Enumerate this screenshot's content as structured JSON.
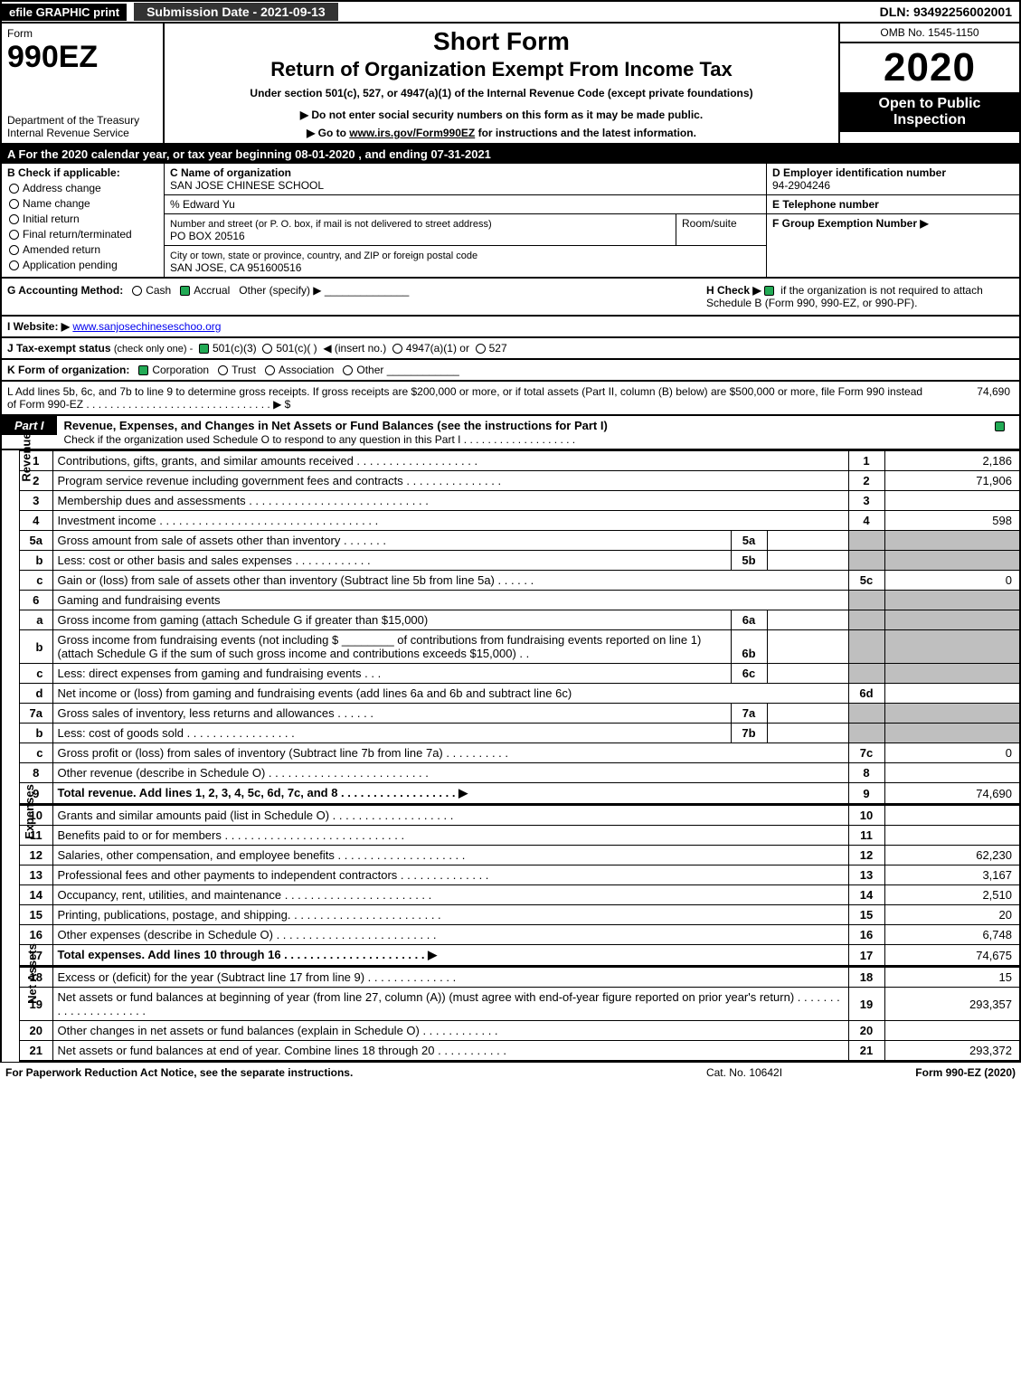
{
  "topbar": {
    "efile": "efile GRAPHIC print",
    "submission": "Submission Date - 2021-09-13",
    "dln": "DLN: 93492256002001"
  },
  "header": {
    "form_label": "Form",
    "form_number": "990EZ",
    "dept": "Department of the Treasury\nInternal Revenue Service",
    "title1": "Short Form",
    "title2": "Return of Organization Exempt From Income Tax",
    "subtitle": "Under section 501(c), 527, or 4947(a)(1) of the Internal Revenue Code (except private foundations)",
    "note1": "▶ Do not enter social security numbers on this form as it may be made public.",
    "note2_pre": "▶ Go to ",
    "note2_link": "www.irs.gov/Form990EZ",
    "note2_post": " for instructions and the latest information.",
    "omb": "OMB No. 1545-1150",
    "year": "2020",
    "inspection": "Open to Public Inspection"
  },
  "yearline": "A  For the 2020 calendar year, or tax year beginning 08-01-2020 , and ending 07-31-2021",
  "colB": {
    "hdr": "B  Check if applicable:",
    "opts": [
      "Address change",
      "Name change",
      "Initial return",
      "Final return/terminated",
      "Amended return",
      "Application pending"
    ]
  },
  "colC": {
    "name_lbl": "C Name of organization",
    "name": "SAN JOSE CHINESE SCHOOL",
    "care": "% Edward Yu",
    "street_lbl": "Number and street (or P. O. box, if mail is not delivered to street address)",
    "suite_lbl": "Room/suite",
    "street": "PO BOX 20516",
    "city_lbl": "City or town, state or province, country, and ZIP or foreign postal code",
    "city": "SAN JOSE, CA  951600516"
  },
  "colD": {
    "ein_lbl": "D Employer identification number",
    "ein": "94-2904246",
    "tel_lbl": "E Telephone number",
    "grp_lbl": "F Group Exemption Number  ▶"
  },
  "rowG": {
    "lbl": "G Accounting Method:",
    "cash": "Cash",
    "accrual": "Accrual",
    "other": "Other (specify) ▶"
  },
  "rowH": {
    "txt1": "H  Check ▶",
    "txt2": "if the organization is not required to attach Schedule B (Form 990, 990-EZ, or 990-PF)."
  },
  "rowI": {
    "lbl": "I Website: ▶",
    "url": "www.sanjosechineseschoo.org"
  },
  "rowJ": {
    "lbl": "J Tax-exempt status",
    "note": "(check only one) -",
    "a": "501(c)(3)",
    "b": "501(c)(  )",
    "c": "◀ (insert no.)",
    "d": "4947(a)(1) or",
    "e": "527"
  },
  "rowK": {
    "lbl": "K Form of organization:",
    "opts": [
      "Corporation",
      "Trust",
      "Association",
      "Other"
    ]
  },
  "rowL": {
    "txt": "L Add lines 5b, 6c, and 7b to line 9 to determine gross receipts. If gross receipts are $200,000 or more, or if total assets (Part II, column (B) below) are $500,000 or more, file Form 990 instead of Form 990-EZ  .  .  .  .  .  .  .  .  .  .  .  .  .  .  .  .  .  .  .  .  .  .  .  .  .  .  .  .  .  .  .  ▶ $",
    "amt": "74,690"
  },
  "part1": {
    "tab": "Part I",
    "title": "Revenue, Expenses, and Changes in Net Assets or Fund Balances (see the instructions for Part I)",
    "sub": "Check if the organization used Schedule O to respond to any question in this Part I  .  .  .  .  .  .  .  .  .  .  .  .  .  .  .  .  .  .  ."
  },
  "sections": {
    "revenue": "Revenue",
    "expenses": "Expenses",
    "netassets": "Net Assets"
  },
  "lines": {
    "l1": {
      "n": "1",
      "d": "Contributions, gifts, grants, and similar amounts received  .  .  .  .  .  .  .  .  .  .  .  .  .  .  .  .  .  .  .",
      "ln": "1",
      "amt": "2,186"
    },
    "l2": {
      "n": "2",
      "d": "Program service revenue including government fees and contracts  .  .  .  .  .  .  .  .  .  .  .  .  .  .  .",
      "ln": "2",
      "amt": "71,906"
    },
    "l3": {
      "n": "3",
      "d": "Membership dues and assessments  .  .  .  .  .  .  .  .  .  .  .  .  .  .  .  .  .  .  .  .  .  .  .  .  .  .  .  .",
      "ln": "3",
      "amt": ""
    },
    "l4": {
      "n": "4",
      "d": "Investment income  .  .  .  .  .  .  .  .  .  .  .  .  .  .  .  .  .  .  .  .  .  .  .  .  .  .  .  .  .  .  .  .  .  .",
      "ln": "4",
      "amt": "598"
    },
    "l5a": {
      "n": "5a",
      "d": "Gross amount from sale of assets other than inventory  .  .  .  .  .  .  .",
      "mn": "5a"
    },
    "l5b": {
      "n": "b",
      "d": "Less: cost or other basis and sales expenses  .  .  .  .  .  .  .  .  .  .  .  .",
      "mn": "5b"
    },
    "l5c": {
      "n": "c",
      "d": "Gain or (loss) from sale of assets other than inventory (Subtract line 5b from line 5a)  .  .  .  .  .  .",
      "ln": "5c",
      "amt": "0"
    },
    "l6": {
      "n": "6",
      "d": "Gaming and fundraising events"
    },
    "l6a": {
      "n": "a",
      "d": "Gross income from gaming (attach Schedule G if greater than $15,000)",
      "mn": "6a"
    },
    "l6b": {
      "n": "b",
      "d": "Gross income from fundraising events (not including $",
      "d2": "of contributions from fundraising events reported on line 1) (attach Schedule G if the sum of such gross income and contributions exceeds $15,000)  .  .",
      "mn": "6b"
    },
    "l6c": {
      "n": "c",
      "d": "Less: direct expenses from gaming and fundraising events  .  .  .",
      "mn": "6c"
    },
    "l6d": {
      "n": "d",
      "d": "Net income or (loss) from gaming and fundraising events (add lines 6a and 6b and subtract line 6c)",
      "ln": "6d",
      "amt": ""
    },
    "l7a": {
      "n": "7a",
      "d": "Gross sales of inventory, less returns and allowances  .  .  .  .  .  .",
      "mn": "7a"
    },
    "l7b": {
      "n": "b",
      "d": "Less: cost of goods sold  .  .  .  .  .  .  .  .  .  .  .  .  .  .  .  .  .",
      "mn": "7b"
    },
    "l7c": {
      "n": "c",
      "d": "Gross profit or (loss) from sales of inventory (Subtract line 7b from line 7a)  .  .  .  .  .  .  .  .  .  .",
      "ln": "7c",
      "amt": "0"
    },
    "l8": {
      "n": "8",
      "d": "Other revenue (describe in Schedule O)  .  .  .  .  .  .  .  .  .  .  .  .  .  .  .  .  .  .  .  .  .  .  .  .  .",
      "ln": "8",
      "amt": ""
    },
    "l9": {
      "n": "9",
      "d": "Total revenue. Add lines 1, 2, 3, 4, 5c, 6d, 7c, and 8  .  .  .  .  .  .  .  .  .  .  .  .  .  .  .  .  .  .  ▶",
      "ln": "9",
      "amt": "74,690"
    },
    "l10": {
      "n": "10",
      "d": "Grants and similar amounts paid (list in Schedule O)  .  .  .  .  .  .  .  .  .  .  .  .  .  .  .  .  .  .  .",
      "ln": "10",
      "amt": ""
    },
    "l11": {
      "n": "11",
      "d": "Benefits paid to or for members  .  .  .  .  .  .  .  .  .  .  .  .  .  .  .  .  .  .  .  .  .  .  .  .  .  .  .  .",
      "ln": "11",
      "amt": ""
    },
    "l12": {
      "n": "12",
      "d": "Salaries, other compensation, and employee benefits  .  .  .  .  .  .  .  .  .  .  .  .  .  .  .  .  .  .  .  .",
      "ln": "12",
      "amt": "62,230"
    },
    "l13": {
      "n": "13",
      "d": "Professional fees and other payments to independent contractors  .  .  .  .  .  .  .  .  .  .  .  .  .  .",
      "ln": "13",
      "amt": "3,167"
    },
    "l14": {
      "n": "14",
      "d": "Occupancy, rent, utilities, and maintenance  .  .  .  .  .  .  .  .  .  .  .  .  .  .  .  .  .  .  .  .  .  .  .",
      "ln": "14",
      "amt": "2,510"
    },
    "l15": {
      "n": "15",
      "d": "Printing, publications, postage, and shipping.  .  .  .  .  .  .  .  .  .  .  .  .  .  .  .  .  .  .  .  .  .  .  .",
      "ln": "15",
      "amt": "20"
    },
    "l16": {
      "n": "16",
      "d": "Other expenses (describe in Schedule O)  .  .  .  .  .  .  .  .  .  .  .  .  .  .  .  .  .  .  .  .  .  .  .  .  .",
      "ln": "16",
      "amt": "6,748"
    },
    "l17": {
      "n": "17",
      "d": "Total expenses. Add lines 10 through 16  .  .  .  .  .  .  .  .  .  .  .  .  .  .  .  .  .  .  .  .  .  .  ▶",
      "ln": "17",
      "amt": "74,675"
    },
    "l18": {
      "n": "18",
      "d": "Excess or (deficit) for the year (Subtract line 17 from line 9)  .  .  .  .  .  .  .  .  .  .  .  .  .  .",
      "ln": "18",
      "amt": "15"
    },
    "l19": {
      "n": "19",
      "d": "Net assets or fund balances at beginning of year (from line 27, column (A)) (must agree with end-of-year figure reported on prior year's return)  .  .  .  .  .  .  .  .  .  .  .  .  .  .  .  .  .  .  .  .  .",
      "ln": "19",
      "amt": "293,357"
    },
    "l20": {
      "n": "20",
      "d": "Other changes in net assets or fund balances (explain in Schedule O)  .  .  .  .  .  .  .  .  .  .  .  .",
      "ln": "20",
      "amt": ""
    },
    "l21": {
      "n": "21",
      "d": "Net assets or fund balances at end of year. Combine lines 18 through 20  .  .  .  .  .  .  .  .  .  .  .",
      "ln": "21",
      "amt": "293,372"
    }
  },
  "footer": {
    "left": "For Paperwork Reduction Act Notice, see the separate instructions.",
    "center": "Cat. No. 10642I",
    "right": "Form 990-EZ (2020)"
  }
}
